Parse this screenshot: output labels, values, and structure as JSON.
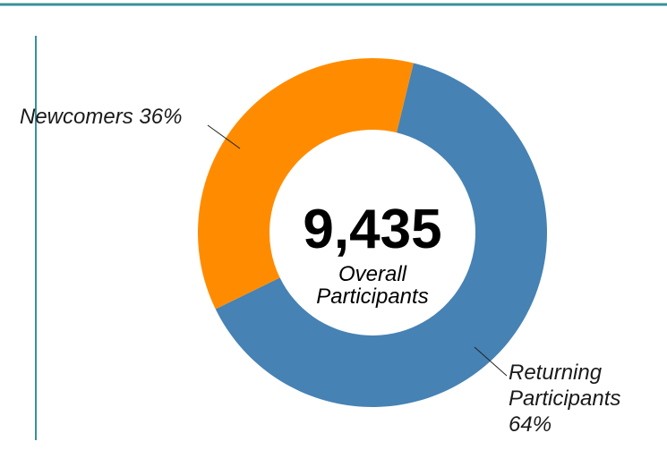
{
  "chart_data": {
    "type": "donut",
    "categories": [
      "Newcomers",
      "Returning Participants"
    ],
    "values": [
      36,
      64
    ],
    "value_labels": [
      "36%",
      "64%"
    ],
    "colors": [
      "#ff8c00",
      "#4682b4"
    ],
    "total": {
      "value": 9435,
      "label": "9,435"
    },
    "total_caption": "Overall Participants"
  }
}
